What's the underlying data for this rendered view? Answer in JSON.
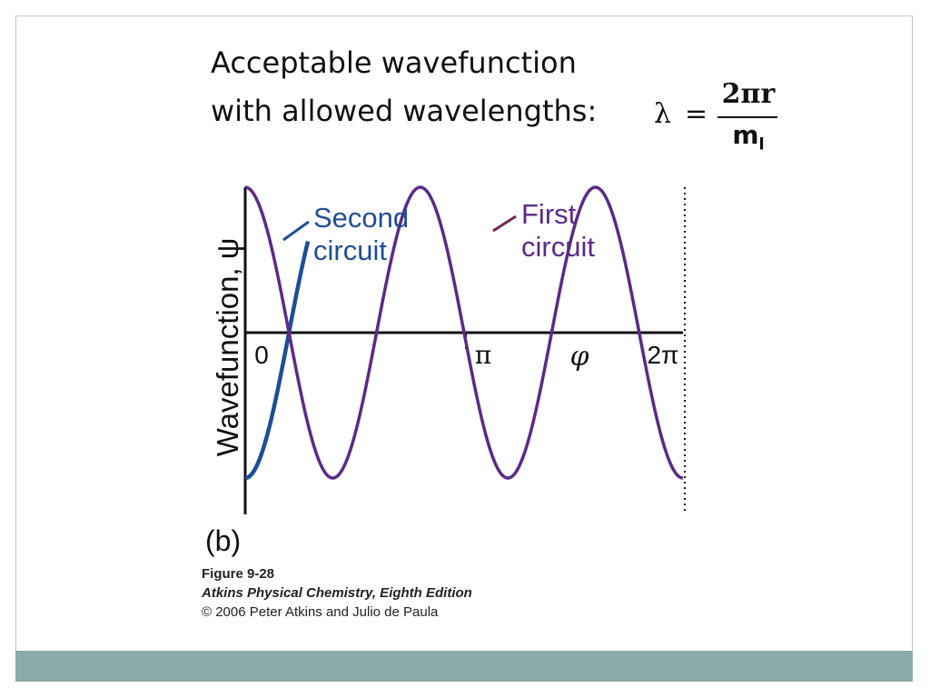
{
  "slide": {
    "heading_line1": "Acceptable wavefunction",
    "heading_line2": "with allowed wavelengths:",
    "formula": {
      "lhs": "λ",
      "equals": "=",
      "numerator": "2πr",
      "denominator": "m",
      "denominator_subscript": "l"
    },
    "caption_figure": "Figure 9-28",
    "caption_book": "Atkins Physical Chemistry, Eighth Edition",
    "caption_copyright": "© 2006 Peter Atkins and Julio de Paula",
    "colors": {
      "footer_band": "#8aabab",
      "frame_border": "#bcc8c8"
    }
  },
  "chart_data": {
    "type": "line",
    "panel_label": "(b)",
    "ylabel": "Wavefunction, ψ",
    "xlabel": "φ",
    "x_ticks": [
      {
        "value": 0,
        "label": "0"
      },
      {
        "value": 3.14159,
        "label": "π"
      },
      {
        "value": 6.28318,
        "label": "2π"
      }
    ],
    "xlim": [
      0,
      6.28318
    ],
    "ylim": [
      -1,
      1
    ],
    "series": [
      {
        "name": "First circuit",
        "color": "#5c2a87",
        "function": "cos(2.5·φ)",
        "x": [
          0,
          0.3142,
          0.6283,
          0.9425,
          1.2566,
          1.5708,
          1.885,
          2.1991,
          2.5133,
          2.8274,
          3.1416,
          3.4558,
          3.7699,
          4.0841,
          4.3982,
          4.7124,
          5.0265,
          5.3407,
          5.6549,
          5.969,
          6.2832
        ],
        "y": [
          1,
          0.707,
          0,
          -0.707,
          -1,
          -0.707,
          0,
          0.707,
          1,
          0.707,
          0,
          -0.707,
          -1,
          -0.707,
          0,
          0.707,
          1,
          0.707,
          0,
          -0.707,
          -1
        ]
      },
      {
        "name": "Second circuit",
        "color": "#1f4e96",
        "function": "cos(2.5·(φ+2π)), shown over 0 ≤ φ ≤ 0.9",
        "x": [
          0,
          0.1,
          0.2,
          0.3,
          0.4,
          0.5,
          0.6,
          0.7,
          0.8,
          0.9
        ],
        "y": [
          -1,
          -0.969,
          -0.878,
          -0.732,
          -0.54,
          -0.315,
          -0.071,
          0.176,
          0.416,
          0.628
        ]
      }
    ]
  }
}
